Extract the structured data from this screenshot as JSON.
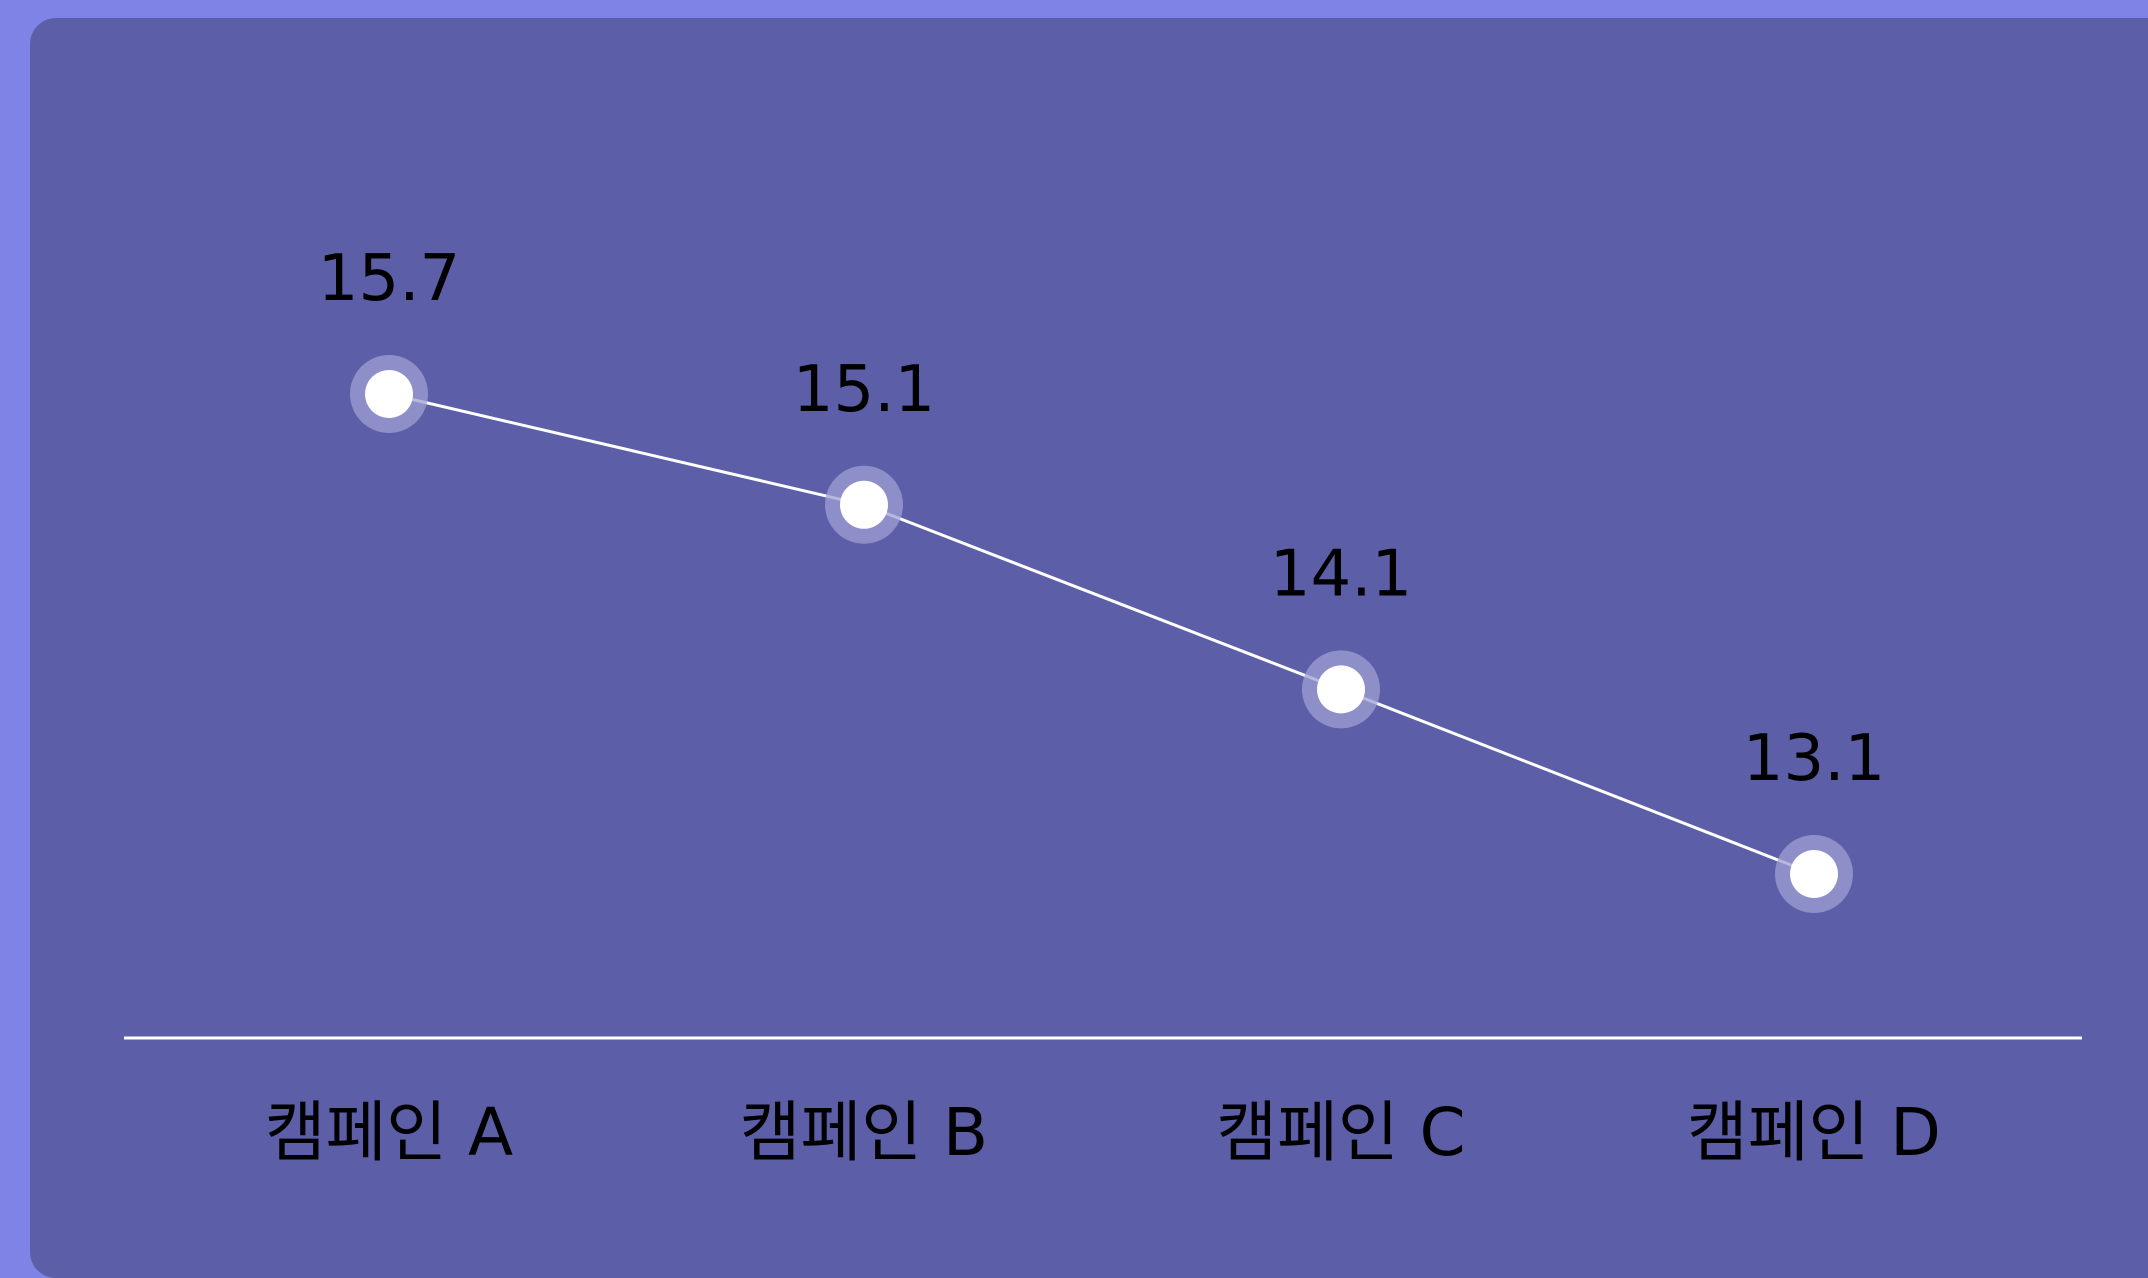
{
  "colors": {
    "page_background": "#7f83e6",
    "panel_background": "#5d5ea8",
    "line": "#ffffff",
    "marker": "#ffffff",
    "marker_halo": "#9fa0d4",
    "text": "#000000"
  },
  "chart_data": {
    "type": "line",
    "categories": [
      "캠페인 A",
      "캠페인 B",
      "캠페인 C",
      "캠페인 D"
    ],
    "series": [
      {
        "values": [
          15.7,
          15.1,
          14.1,
          13.1
        ]
      }
    ],
    "data_labels": [
      "15.7",
      "15.1",
      "14.1",
      "13.1"
    ],
    "title": "",
    "xlabel": "",
    "ylabel": "",
    "y_axis_visible": false,
    "grid": false,
    "legend": "none"
  }
}
